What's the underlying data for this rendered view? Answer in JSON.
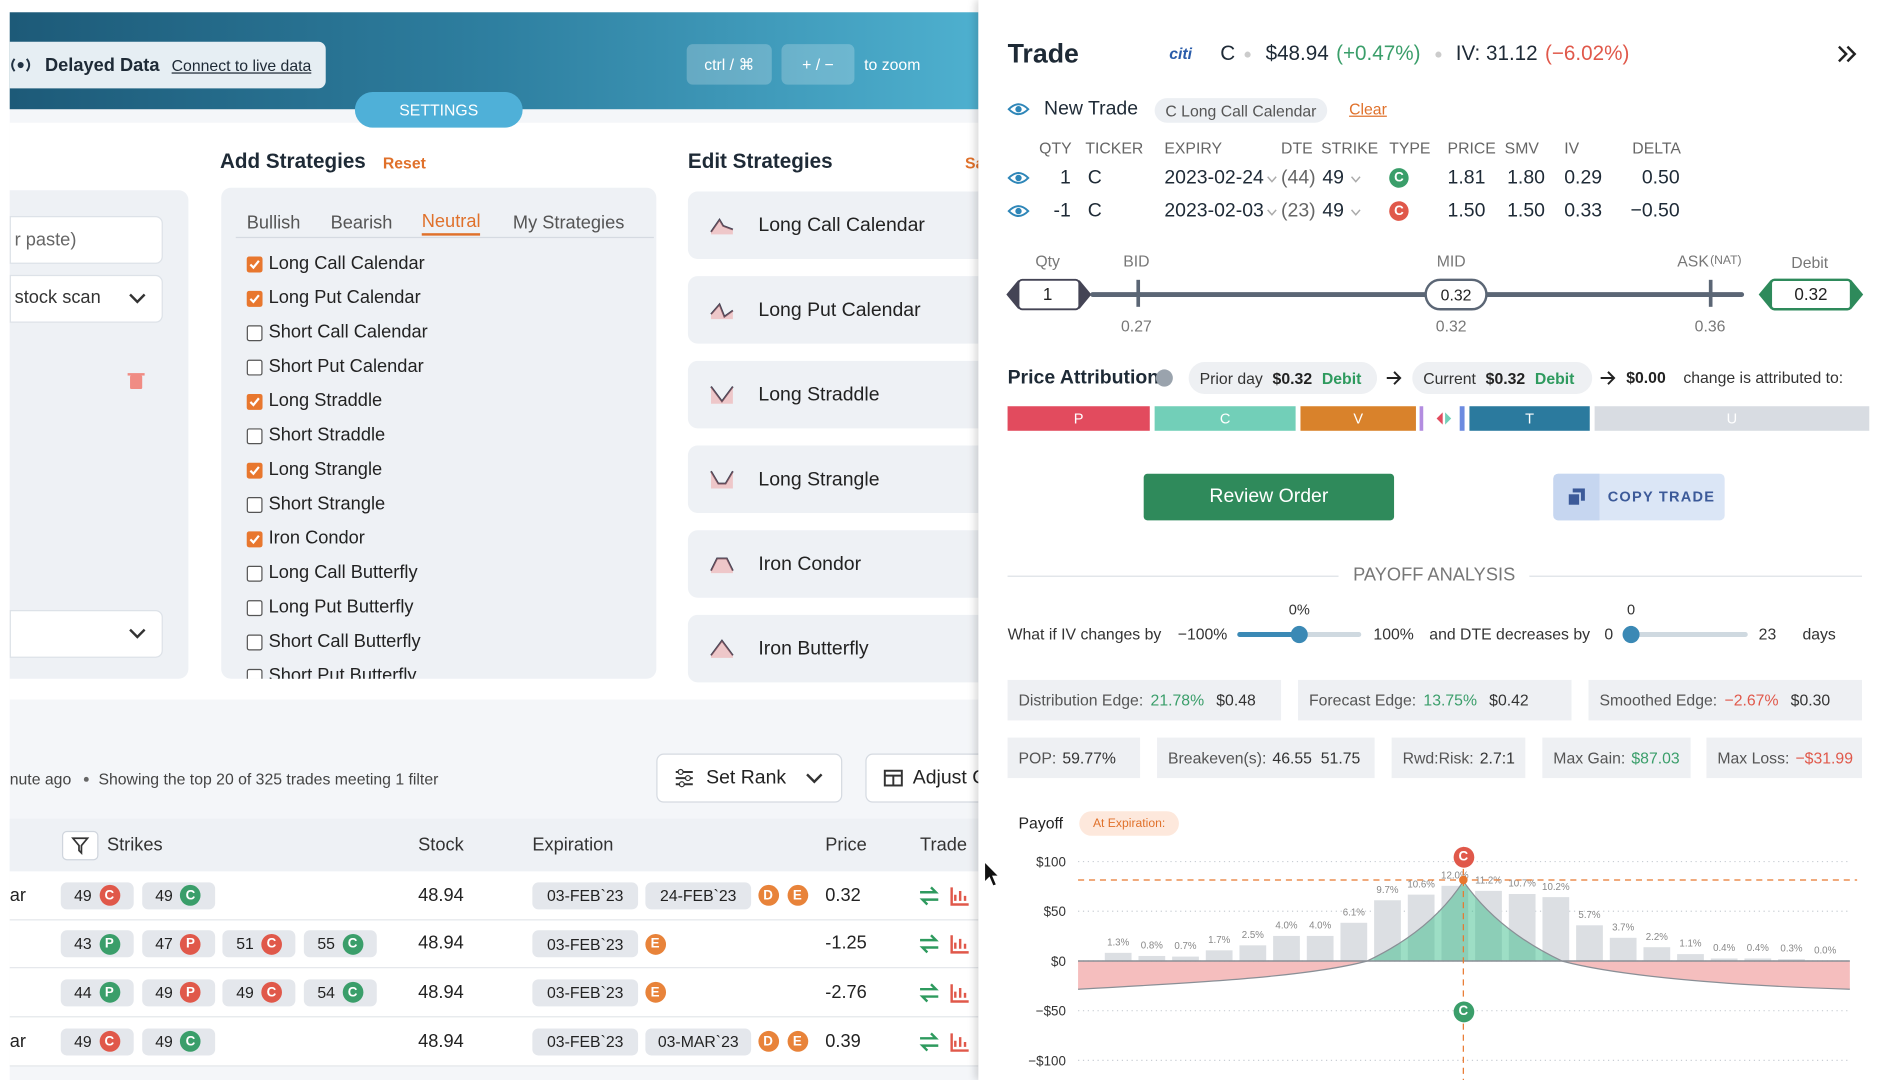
{
  "top_bar": {
    "delayed": "Delayed Data",
    "connect": "Connect to live data",
    "zoom_key": "ctrl / ⌘",
    "zoom_keys": "+ / −",
    "zoom_text": "to zoom",
    "settings": "SETTINGS"
  },
  "scan_panel": {
    "paste": "r paste)",
    "scan": "stock scan"
  },
  "add_strategies": {
    "title": "Add Strategies",
    "reset": "Reset",
    "tabs": [
      "Bullish",
      "Bearish",
      "Neutral",
      "My Strategies"
    ],
    "active_tab": 2,
    "items": [
      {
        "label": "Long Call Calendar",
        "checked": true
      },
      {
        "label": "Long Put Calendar",
        "checked": true
      },
      {
        "label": "Short Call Calendar",
        "checked": false
      },
      {
        "label": "Short Put Calendar",
        "checked": false
      },
      {
        "label": "Long Straddle",
        "checked": true
      },
      {
        "label": "Short Straddle",
        "checked": false
      },
      {
        "label": "Long Strangle",
        "checked": true
      },
      {
        "label": "Short Strangle",
        "checked": false
      },
      {
        "label": "Iron Condor",
        "checked": true
      },
      {
        "label": "Long Call Butterfly",
        "checked": false
      },
      {
        "label": "Long Put Butterfly",
        "checked": false
      },
      {
        "label": "Short Call Butterfly",
        "checked": false
      },
      {
        "label": "Short Put Butterfly",
        "checked": false
      }
    ]
  },
  "edit_strategies": {
    "title": "Edit Strategies",
    "save": "Sa",
    "items": [
      "Long Call Calendar",
      "Long Put Calendar",
      "Long Straddle",
      "Long Strangle",
      "Iron Condor",
      "Iron Butterfly"
    ]
  },
  "results": {
    "updated": "nute ago",
    "showing": "Showing the top 20 of 325 trades meeting 1 filter",
    "set_rank": "Set Rank",
    "adjust": "Adjust C",
    "headers": {
      "strikes": "Strikes",
      "stock": "Stock",
      "expiration": "Expiration",
      "price": "Price",
      "trade": "Trade"
    },
    "rows": [
      {
        "name": "ar",
        "strikes": [
          {
            "strike": "49",
            "type": "C",
            "color": "#e0584a"
          },
          {
            "strike": "49",
            "type": "C",
            "color": "#3a9e6a"
          }
        ],
        "stock": "48.94",
        "expirations": [
          "03-FEB`23",
          "24-FEB`23"
        ],
        "badges": [
          "D",
          "E"
        ],
        "price": "0.32"
      },
      {
        "strikes": [
          {
            "strike": "43",
            "type": "P",
            "color": "#3a9e6a"
          },
          {
            "strike": "47",
            "type": "P",
            "color": "#e0584a"
          },
          {
            "strike": "51",
            "type": "C",
            "color": "#e0584a"
          },
          {
            "strike": "55",
            "type": "C",
            "color": "#3a9e6a"
          }
        ],
        "stock": "48.94",
        "expirations": [
          "03-FEB`23"
        ],
        "badges": [
          "E"
        ],
        "price": "-1.25"
      },
      {
        "strikes": [
          {
            "strike": "44",
            "type": "P",
            "color": "#3a9e6a"
          },
          {
            "strike": "49",
            "type": "P",
            "color": "#e0584a"
          },
          {
            "strike": "49",
            "type": "C",
            "color": "#e0584a"
          },
          {
            "strike": "54",
            "type": "C",
            "color": "#3a9e6a"
          }
        ],
        "stock": "48.94",
        "expirations": [
          "03-FEB`23"
        ],
        "badges": [
          "E"
        ],
        "price": "-2.76"
      },
      {
        "name": "ar",
        "strikes": [
          {
            "strike": "49",
            "type": "C",
            "color": "#e0584a"
          },
          {
            "strike": "49",
            "type": "C",
            "color": "#3a9e6a"
          }
        ],
        "stock": "48.94",
        "expirations": [
          "03-FEB`23",
          "03-MAR`23"
        ],
        "badges": [
          "D",
          "E"
        ],
        "price": "0.39"
      }
    ]
  },
  "trade": {
    "title": "Trade",
    "logo": "citi",
    "ticker": "C",
    "price": "$48.94",
    "change": "(+0.47%)",
    "iv": "IV: 31.12",
    "iv_change": "(−6.02%)",
    "new_trade": "New Trade",
    "strategy": "C Long Call Calendar",
    "clear": "Clear",
    "headers": [
      "QTY",
      "TICKER",
      "EXPIRY",
      "DTE",
      "STRIKE",
      "TYPE",
      "PRICE",
      "SMV",
      "IV",
      "DELTA"
    ],
    "legs": [
      {
        "cells": [
          "1",
          "C",
          "2023-02-24",
          "(44)",
          "49",
          "C",
          "1.81",
          "1.80",
          "0.29",
          "0.50"
        ],
        "type_color": "#3a9e6a"
      },
      {
        "cells": [
          "-1",
          "C",
          "2023-02-03",
          "(23)",
          "49",
          "C",
          "1.50",
          "1.50",
          "0.33",
          "−0.50"
        ],
        "type_color": "#e0584a"
      }
    ],
    "order": {
      "qty_label": "Qty",
      "qty": "1",
      "bid_label": "BID",
      "mid_label": "MID",
      "ask_label": "ASK",
      "nat": "(NAT)",
      "debit_label": "Debit",
      "mid": "0.32",
      "debit": "0.32",
      "bid_value": "0.27",
      "mid_value": "0.32",
      "ask_value": "0.36"
    },
    "attribution": {
      "title": "Price Attribution",
      "prior_label": "Prior day",
      "prior_value": "$0.32",
      "prior_kind": "Debit",
      "current_label": "Current",
      "current_value": "$0.32",
      "current_kind": "Debit",
      "change": "$0.00",
      "tail": "change is attributed to:",
      "bars": [
        {
          "label": "P",
          "color": "#e24b5e"
        },
        {
          "label": "C",
          "color": "#72cfb8"
        },
        {
          "label": "V",
          "color": "#d9822b"
        },
        {
          "label": "T",
          "color": "#2b7a9e"
        },
        {
          "label": "U",
          "color": "#d8dce2"
        }
      ]
    },
    "review": "Review Order",
    "copy": "COPY TRADE"
  },
  "payoff_analysis": {
    "title": "PAYOFF ANALYSIS",
    "iv_text": "What if IV changes by",
    "iv_min": "−100%",
    "iv_current": "0%",
    "iv_max": "100%",
    "dte_text": "and DTE decreases by",
    "dte_min": "0",
    "dte_current": "0",
    "dte_max": "23",
    "dte_unit": "days",
    "edges": [
      {
        "label": "Distribution Edge:",
        "pct": "21.78%",
        "value": "$0.48",
        "color": "#3a9e6a"
      },
      {
        "label": "Forecast Edge:",
        "pct": "13.75%",
        "value": "$0.42",
        "color": "#3a9e6a"
      },
      {
        "label": "Smoothed Edge:",
        "pct": "−2.67%",
        "value": "$0.30",
        "color": "#e0584a"
      }
    ],
    "stats": [
      {
        "label": "POP:",
        "value": "59.77%",
        "color": "#333333"
      },
      {
        "label": "Breakeven(s):",
        "value": "46.55  51.75",
        "color": "#333333"
      },
      {
        "label": "Rwd:Risk:",
        "value": "2.7:1",
        "color": "#333333"
      },
      {
        "label": "Max Gain:",
        "value": "$87.03",
        "color": "#3a9e6a"
      },
      {
        "label": "Max Loss:",
        "value": "−$31.99",
        "color": "#e0584a"
      }
    ]
  },
  "chart_data": {
    "type": "bar",
    "title": "Payoff",
    "subtitle": "At Expiration:",
    "color": "#dcdfe3",
    "values": [
      1.3,
      0.8,
      0.7,
      1.7,
      2.5,
      4.0,
      4.0,
      6.1,
      9.7,
      10.6,
      12.0,
      11.2,
      10.7,
      10.2,
      5.7,
      3.7,
      2.2,
      1.1,
      0.4,
      0.4,
      0.3,
      0.0
    ],
    "value_labels": [
      "1.3%",
      "0.8%",
      "0.7%",
      "1.7%",
      "2.5%",
      "4.0%",
      "4.0%",
      "6.1%",
      "9.7%",
      "10.6%",
      "12.0%",
      "11.2%",
      "10.7%",
      "10.2%",
      "5.7%",
      "3.7%",
      "2.2%",
      "1.1%",
      "0.4%",
      "0.4%",
      "0.3%",
      "0.0%"
    ],
    "ylim": [
      -110,
      110
    ],
    "yticks": [
      {
        "value": 100,
        "label": "$100"
      },
      {
        "value": 50,
        "label": "$50"
      },
      {
        "value": 0,
        "label": "$0"
      },
      {
        "value": -50,
        "label": "−$50"
      },
      {
        "value": -100,
        "label": "−$100"
      }
    ],
    "grid": true
  }
}
